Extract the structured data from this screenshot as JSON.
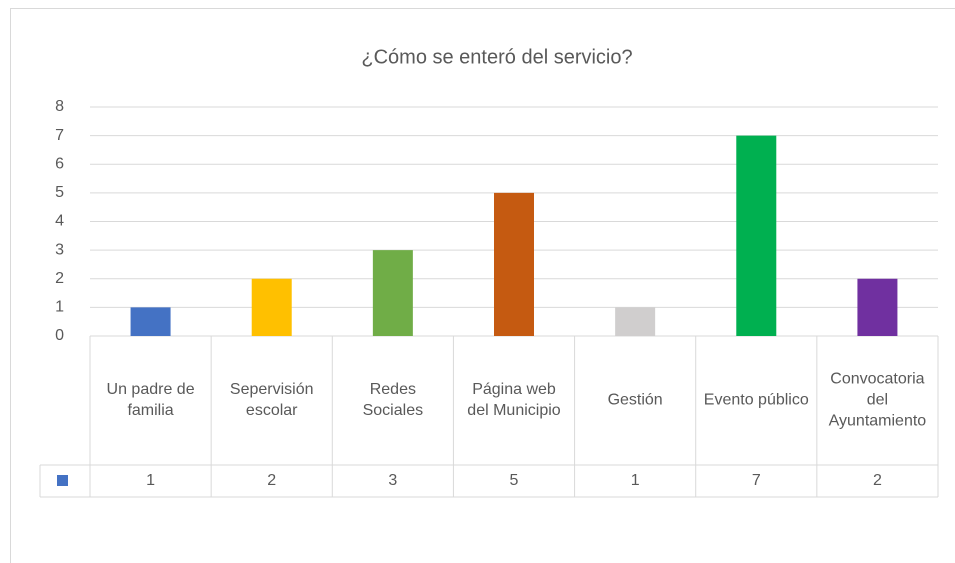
{
  "chart_data": {
    "type": "bar",
    "title": "¿Cómo se enteró del servicio?",
    "categories": [
      "Un padre de familia",
      "Sepervisión escolar",
      "Redes Sociales",
      "Página web del Municipio",
      "Gestión",
      "Evento público",
      "Convocatoria del Ayuntamiento"
    ],
    "values": [
      1,
      2,
      3,
      5,
      1,
      7,
      2
    ],
    "colors": [
      "#4472c4",
      "#ffc000",
      "#70ad47",
      "#c55a11",
      "#d0cece",
      "#00b050",
      "#7030a0"
    ],
    "ylim": [
      0,
      8
    ],
    "yticks": [
      0,
      1,
      2,
      3,
      4,
      5,
      6,
      7,
      8
    ],
    "grid": true,
    "data_table": true
  }
}
